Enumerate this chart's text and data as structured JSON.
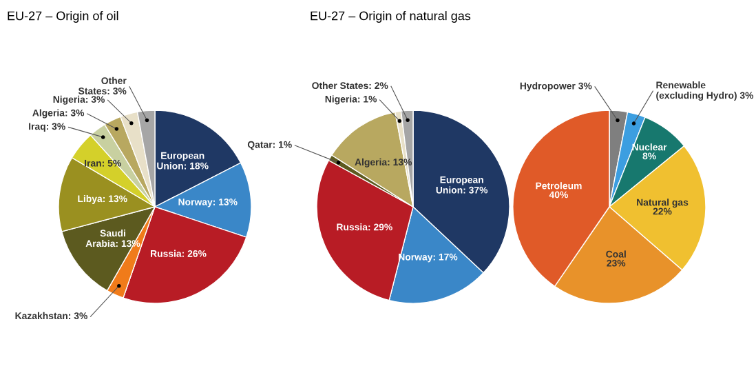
{
  "chart_data": [
    {
      "type": "pie",
      "title": "EU-27 – Origin of oil",
      "categories": [
        "European\nUnion",
        "Norway",
        "Russia",
        "Kazakhstan",
        "Saudi\nArabia",
        "Libya",
        "Iran",
        "Iraq",
        "Algeria",
        "Nigeria",
        "Other\nStates"
      ],
      "values": [
        18,
        13,
        26,
        3,
        13,
        13,
        5,
        3,
        3,
        3,
        3
      ],
      "value_labels": [
        "18%",
        "13%",
        "26%",
        "3%",
        "13%",
        "13%",
        "5%",
        "3%",
        "3%",
        "3%",
        "3%"
      ],
      "colors": [
        "#1f3864",
        "#3a87c8",
        "#b81c25",
        "#f07b1a",
        "#5c5a1f",
        "#9a9020",
        "#d4d02a",
        "#c8d0a0",
        "#b8a860",
        "#e8e0c8",
        "#a6a6a6"
      ]
    },
    {
      "type": "pie",
      "title": "EU-27 – Origin of natural gas",
      "categories": [
        "European\nUnion",
        "Norway",
        "Russia",
        "Qatar",
        "Algeria",
        "Nigeria",
        "Other States"
      ],
      "values": [
        37,
        17,
        29,
        1,
        13,
        1,
        2
      ],
      "value_labels": [
        "37%",
        "17%",
        "29%",
        "1%",
        "13%",
        "1%",
        "2%"
      ],
      "colors": [
        "#1f3864",
        "#3a87c8",
        "#b81c25",
        "#5c5a1f",
        "#b8a860",
        "#e8e0c8",
        "#a6a6a6"
      ]
    },
    {
      "type": "pie",
      "categories": [
        "Hydropower",
        "Renewable\n(excluding Hydro)",
        "Nuclear",
        "Natural gas",
        "Coal",
        "Petroleum"
      ],
      "values": [
        3,
        3,
        8,
        22,
        23,
        40
      ],
      "value_labels": [
        "3%",
        "3%",
        "8%",
        "22%",
        "23%",
        "40%"
      ],
      "colors": [
        "#7f7f7f",
        "#3c9ee0",
        "#17786e",
        "#f0c030",
        "#e8922a",
        "#e05a28"
      ]
    }
  ]
}
